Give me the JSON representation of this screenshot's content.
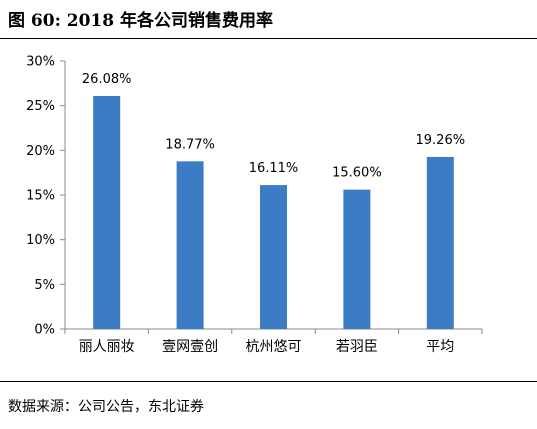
{
  "figure": {
    "title": "图 60:  2018 年各公司销售费用率",
    "source": "数据来源：公司公告，东北证券"
  },
  "colors": {
    "bar": "#3B7CC4",
    "axis": "#888888"
  },
  "chart_data": {
    "type": "bar",
    "categories": [
      "丽人丽妆",
      "壹网壹创",
      "杭州悠可",
      "若羽臣",
      "平均"
    ],
    "values": [
      26.08,
      18.77,
      16.11,
      15.6,
      19.26
    ],
    "data_labels": [
      "26.08%",
      "18.77%",
      "16.11%",
      "15.60%",
      "19.26%"
    ],
    "yticks": [
      "0%",
      "5%",
      "10%",
      "15%",
      "20%",
      "25%",
      "30%"
    ],
    "ylim": [
      0,
      30
    ],
    "grid": false,
    "legend": "none"
  }
}
